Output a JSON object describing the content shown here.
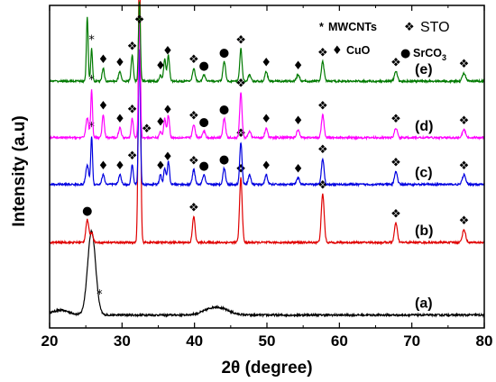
{
  "chart_data": {
    "type": "line",
    "xlabel": "2θ (degree)",
    "ylabel": "Intensity (a.u)",
    "xlim": [
      20,
      80
    ],
    "xticks": [
      20,
      30,
      40,
      50,
      60,
      70,
      80
    ],
    "grid": false,
    "legend": {
      "placement": "top-right",
      "entries": [
        {
          "symbol": "*",
          "label": "MWCNTs"
        },
        {
          "symbol": "❖",
          "label": "STO"
        },
        {
          "symbol": "♦",
          "label": "CuO"
        },
        {
          "symbol": "●",
          "label": "SrCO3"
        }
      ]
    },
    "series": [
      {
        "label": "(a)",
        "color": "#000000",
        "baseline": 0.04,
        "peaks": [
          [
            25.8,
            0.26,
            0.55
          ],
          [
            21.5,
            0.015,
            1.2
          ],
          [
            43.0,
            0.025,
            1.5
          ]
        ],
        "markers": [
          [
            26.9,
            "*"
          ]
        ]
      },
      {
        "label": "(b)",
        "color": "#e00000",
        "baseline": 0.265,
        "peaks": [
          [
            25.2,
            0.07,
            0.2
          ],
          [
            25.8,
            0.03,
            0.2
          ],
          [
            32.4,
            0.92,
            0.15
          ],
          [
            39.9,
            0.08,
            0.18
          ],
          [
            46.4,
            0.2,
            0.18
          ],
          [
            57.7,
            0.15,
            0.2
          ],
          [
            67.8,
            0.06,
            0.2
          ],
          [
            77.2,
            0.04,
            0.22
          ]
        ],
        "markers": [
          [
            25.2,
            "●"
          ],
          [
            39.9,
            "❖"
          ],
          [
            46.4,
            "❖"
          ],
          [
            57.7,
            "❖"
          ],
          [
            67.8,
            "❖"
          ],
          [
            77.2,
            "❖"
          ]
        ]
      },
      {
        "label": "(c)",
        "color": "#0000e0",
        "baseline": 0.445,
        "peaks": [
          [
            25.2,
            0.06,
            0.2
          ],
          [
            25.8,
            0.15,
            0.12
          ],
          [
            27.4,
            0.03,
            0.18
          ],
          [
            29.7,
            0.03,
            0.18
          ],
          [
            31.4,
            0.06,
            0.15
          ],
          [
            32.4,
            0.42,
            0.13
          ],
          [
            35.3,
            0.03,
            0.15
          ],
          [
            35.9,
            0.05,
            0.15
          ],
          [
            36.4,
            0.07,
            0.15
          ],
          [
            39.9,
            0.045,
            0.18
          ],
          [
            41.3,
            0.03,
            0.18
          ],
          [
            44.1,
            0.05,
            0.18
          ],
          [
            46.4,
            0.13,
            0.16
          ],
          [
            47.6,
            0.03,
            0.18
          ],
          [
            49.9,
            0.03,
            0.18
          ],
          [
            54.3,
            0.02,
            0.2
          ],
          [
            57.7,
            0.08,
            0.18
          ],
          [
            67.8,
            0.04,
            0.2
          ],
          [
            77.2,
            0.03,
            0.22
          ]
        ],
        "markers": [
          [
            25.8,
            "*"
          ],
          [
            27.4,
            "♦"
          ],
          [
            29.7,
            "♦"
          ],
          [
            31.4,
            "❖"
          ],
          [
            35.3,
            "♦"
          ],
          [
            36.3,
            "♦"
          ],
          [
            39.9,
            "❖"
          ],
          [
            41.3,
            "●"
          ],
          [
            44.1,
            "●"
          ],
          [
            46.4,
            "❖"
          ],
          [
            49.9,
            "♦"
          ],
          [
            54.3,
            "♦"
          ],
          [
            57.7,
            "❖"
          ],
          [
            67.8,
            "❖"
          ],
          [
            77.2,
            "❖"
          ]
        ]
      },
      {
        "label": "(d)",
        "color": "#ff00ff",
        "baseline": 0.59,
        "peaks": [
          [
            25.2,
            0.06,
            0.2
          ],
          [
            25.8,
            0.15,
            0.12
          ],
          [
            27.4,
            0.07,
            0.15
          ],
          [
            29.7,
            0.03,
            0.18
          ],
          [
            31.4,
            0.06,
            0.15
          ],
          [
            32.4,
            0.36,
            0.13
          ],
          [
            35.3,
            0.02,
            0.15
          ],
          [
            35.9,
            0.06,
            0.15
          ],
          [
            36.4,
            0.07,
            0.15
          ],
          [
            39.9,
            0.04,
            0.18
          ],
          [
            41.3,
            0.02,
            0.18
          ],
          [
            44.1,
            0.06,
            0.18
          ],
          [
            46.4,
            0.14,
            0.16
          ],
          [
            47.6,
            0.02,
            0.18
          ],
          [
            49.9,
            0.03,
            0.18
          ],
          [
            54.3,
            0.025,
            0.2
          ],
          [
            57.7,
            0.07,
            0.18
          ],
          [
            67.8,
            0.03,
            0.2
          ],
          [
            77.2,
            0.025,
            0.22
          ]
        ],
        "markers": [
          [
            25.8,
            "*"
          ],
          [
            27.4,
            "♦"
          ],
          [
            29.7,
            "♦"
          ],
          [
            31.4,
            "❖"
          ],
          [
            33.4,
            "❖"
          ],
          [
            35.3,
            "♦"
          ],
          [
            36.3,
            "♦"
          ],
          [
            39.9,
            "❖"
          ],
          [
            41.3,
            "●"
          ],
          [
            44.1,
            "●"
          ],
          [
            46.4,
            "❖"
          ],
          [
            49.9,
            "♦"
          ],
          [
            54.3,
            "♦"
          ],
          [
            57.7,
            "❖"
          ],
          [
            67.8,
            "❖"
          ],
          [
            77.2,
            "❖"
          ]
        ]
      },
      {
        "label": "(e)",
        "color": "#007a00",
        "baseline": 0.765,
        "peaks": [
          [
            25.2,
            0.2,
            0.12
          ],
          [
            25.8,
            0.1,
            0.12
          ],
          [
            27.4,
            0.04,
            0.15
          ],
          [
            29.7,
            0.03,
            0.18
          ],
          [
            31.4,
            0.08,
            0.15
          ],
          [
            32.4,
            0.25,
            0.13
          ],
          [
            35.3,
            0.02,
            0.15
          ],
          [
            35.9,
            0.07,
            0.15
          ],
          [
            36.4,
            0.08,
            0.15
          ],
          [
            39.9,
            0.04,
            0.18
          ],
          [
            41.3,
            0.02,
            0.18
          ],
          [
            44.1,
            0.06,
            0.18
          ],
          [
            46.4,
            0.1,
            0.16
          ],
          [
            47.6,
            0.02,
            0.18
          ],
          [
            49.9,
            0.03,
            0.18
          ],
          [
            54.3,
            0.02,
            0.2
          ],
          [
            57.7,
            0.06,
            0.18
          ],
          [
            67.8,
            0.03,
            0.2
          ],
          [
            77.2,
            0.025,
            0.22
          ]
        ],
        "markers": [
          [
            25.8,
            "*"
          ],
          [
            27.4,
            "♦"
          ],
          [
            29.7,
            "♦"
          ],
          [
            31.4,
            "❖"
          ],
          [
            35.3,
            "♦"
          ],
          [
            36.3,
            "♦"
          ],
          [
            39.9,
            "❖"
          ],
          [
            41.3,
            "●"
          ],
          [
            44.1,
            "●"
          ],
          [
            46.4,
            "❖"
          ],
          [
            49.9,
            "♦"
          ],
          [
            54.3,
            "♦"
          ],
          [
            57.7,
            "❖"
          ],
          [
            67.8,
            "❖"
          ],
          [
            77.2,
            "❖"
          ]
        ]
      }
    ],
    "top_markers": [
      [
        32.4,
        "❖"
      ]
    ]
  }
}
